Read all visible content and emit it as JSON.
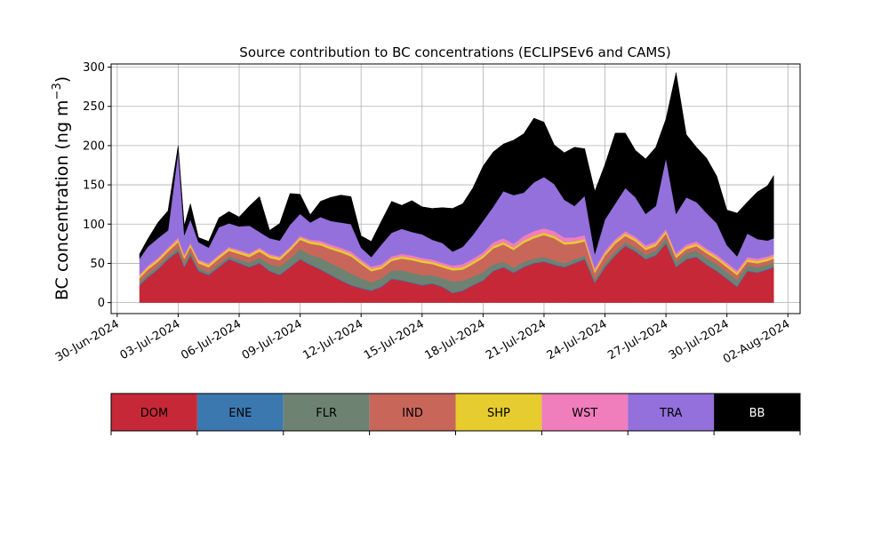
{
  "chart_data": {
    "type": "area",
    "stacked": true,
    "title": "Source contribution to BC concentrations (ECLIPSEv6 and CAMS)",
    "ylabel_main": "BC concentration (ng m",
    "ylabel_sup": "−3",
    "ylabel_close": ")",
    "xlabel": "",
    "ylim": [
      -14,
      304
    ],
    "yticks": [
      0,
      50,
      100,
      150,
      200,
      250,
      300
    ],
    "xlim_days": [
      -0.3,
      33.6
    ],
    "grid": true,
    "x_ticks": [
      {
        "day": 0,
        "label": "30-Jun-2024"
      },
      {
        "day": 3,
        "label": "03-Jul-2024"
      },
      {
        "day": 6,
        "label": "06-Jul-2024"
      },
      {
        "day": 9,
        "label": "09-Jul-2024"
      },
      {
        "day": 12,
        "label": "12-Jul-2024"
      },
      {
        "day": 15,
        "label": "15-Jul-2024"
      },
      {
        "day": 18,
        "label": "18-Jul-2024"
      },
      {
        "day": 21,
        "label": "21-Jul-2024"
      },
      {
        "day": 24,
        "label": "24-Jul-2024"
      },
      {
        "day": 27,
        "label": "27-Jul-2024"
      },
      {
        "day": 30,
        "label": "30-Jul-2024"
      },
      {
        "day": 33,
        "label": "02-Aug-2024"
      }
    ],
    "x_days": [
      1.1,
      1.5,
      2.0,
      2.5,
      3.0,
      3.3,
      3.6,
      4.0,
      4.5,
      5.0,
      5.5,
      6.0,
      6.5,
      7.0,
      7.5,
      8.0,
      8.5,
      9.0,
      9.5,
      10.0,
      10.5,
      11.0,
      11.5,
      12.0,
      12.5,
      13.0,
      13.5,
      14.0,
      14.5,
      15.0,
      15.5,
      16.0,
      16.5,
      17.0,
      17.5,
      18.0,
      18.5,
      19.0,
      19.5,
      20.0,
      20.5,
      21.0,
      21.5,
      22.0,
      22.5,
      23.0,
      23.5,
      24.0,
      24.5,
      25.0,
      25.5,
      26.0,
      26.5,
      27.0,
      27.5,
      28.0,
      28.5,
      29.0,
      29.5,
      30.0,
      30.5,
      31.0,
      31.5,
      32.0,
      32.3
    ],
    "series": [
      {
        "name": "DOM",
        "color": "#c62837",
        "text_color": "#000000",
        "values": [
          22,
          32,
          42,
          55,
          65,
          45,
          60,
          40,
          35,
          45,
          55,
          50,
          45,
          50,
          40,
          35,
          45,
          55,
          48,
          42,
          35,
          28,
          22,
          18,
          15,
          20,
          30,
          28,
          25,
          22,
          24,
          20,
          12,
          15,
          22,
          28,
          40,
          45,
          38,
          45,
          50,
          52,
          48,
          45,
          50,
          55,
          25,
          45,
          60,
          72,
          65,
          55,
          60,
          75,
          45,
          55,
          58,
          48,
          40,
          30,
          20,
          40,
          38,
          42,
          45
        ]
      },
      {
        "name": "ENE",
        "color": "#3b78b0",
        "text_color": "#000000",
        "values": [
          1,
          1,
          1,
          1,
          1,
          1,
          1,
          1,
          1,
          1,
          1,
          1,
          1,
          1,
          1,
          1,
          1,
          1,
          1,
          1,
          1,
          1,
          1,
          1,
          1,
          1,
          1,
          1,
          1,
          1,
          1,
          1,
          1,
          1,
          1,
          1,
          1,
          1,
          1,
          1,
          1,
          1,
          1,
          1,
          1,
          1,
          1,
          1,
          1,
          1,
          1,
          1,
          1,
          1,
          1,
          1,
          1,
          1,
          1,
          1,
          1,
          1,
          1,
          1,
          1
        ]
      },
      {
        "name": "FLR",
        "color": "#6e8271",
        "text_color": "#000000",
        "values": [
          3,
          3,
          3,
          3,
          4,
          4,
          4,
          3,
          3,
          3,
          3,
          4,
          5,
          6,
          8,
          10,
          10,
          12,
          12,
          14,
          14,
          15,
          14,
          12,
          10,
          10,
          10,
          12,
          12,
          12,
          10,
          10,
          14,
          12,
          10,
          10,
          8,
          6,
          6,
          6,
          5,
          5,
          5,
          4,
          4,
          4,
          4,
          4,
          4,
          4,
          4,
          5,
          5,
          6,
          6,
          7,
          7,
          8,
          8,
          8,
          8,
          6,
          6,
          5,
          5
        ]
      },
      {
        "name": "IND",
        "color": "#c8665a",
        "text_color": "#000000",
        "values": [
          5,
          6,
          6,
          6,
          7,
          6,
          6,
          6,
          6,
          7,
          7,
          7,
          7,
          8,
          8,
          8,
          10,
          12,
          14,
          16,
          18,
          20,
          22,
          18,
          14,
          12,
          12,
          15,
          16,
          16,
          14,
          14,
          14,
          14,
          16,
          18,
          20,
          22,
          22,
          24,
          26,
          28,
          28,
          24,
          20,
          18,
          8,
          10,
          10,
          8,
          8,
          6,
          6,
          6,
          5,
          5,
          6,
          6,
          6,
          6,
          6,
          5,
          5,
          5,
          5
        ]
      },
      {
        "name": "SHP",
        "color": "#e6cc2e",
        "text_color": "#000000",
        "values": [
          3,
          3,
          3,
          3,
          3,
          3,
          3,
          3,
          3,
          3,
          3,
          3,
          3,
          3,
          3,
          3,
          3,
          3,
          3,
          3,
          3,
          3,
          3,
          3,
          3,
          3,
          3,
          3,
          3,
          3,
          3,
          3,
          3,
          3,
          3,
          3,
          3,
          3,
          3,
          3,
          3,
          3,
          3,
          3,
          3,
          3,
          3,
          3,
          3,
          3,
          3,
          3,
          3,
          3,
          3,
          3,
          3,
          3,
          3,
          3,
          3,
          3,
          3,
          3,
          3
        ]
      },
      {
        "name": "WST",
        "color": "#f07dbc",
        "text_color": "#000000",
        "values": [
          2,
          2,
          2,
          2,
          3,
          2,
          2,
          2,
          2,
          2,
          2,
          2,
          2,
          2,
          2,
          2,
          2,
          2,
          2,
          3,
          3,
          3,
          3,
          3,
          3,
          3,
          3,
          3,
          3,
          3,
          3,
          3,
          3,
          4,
          4,
          4,
          5,
          5,
          5,
          6,
          6,
          6,
          6,
          6,
          5,
          5,
          3,
          3,
          3,
          3,
          3,
          3,
          3,
          3,
          3,
          3,
          3,
          3,
          3,
          3,
          3,
          3,
          3,
          3,
          3
        ]
      },
      {
        "name": "TRA",
        "color": "#9370db",
        "text_color": "#000000",
        "values": [
          20,
          24,
          25,
          22,
          110,
          25,
          30,
          22,
          20,
          35,
          30,
          30,
          35,
          20,
          20,
          20,
          28,
          28,
          22,
          30,
          30,
          32,
          35,
          15,
          12,
          25,
          30,
          32,
          30,
          30,
          25,
          25,
          18,
          22,
          30,
          40,
          45,
          60,
          62,
          55,
          62,
          65,
          60,
          48,
          40,
          50,
          18,
          40,
          45,
          55,
          50,
          40,
          45,
          90,
          50,
          60,
          50,
          45,
          40,
          22,
          18,
          30,
          25,
          20,
          20
        ]
      },
      {
        "name": "BB",
        "color": "#000000",
        "text_color": "#ffffff",
        "values": [
          6,
          10,
          20,
          25,
          7,
          12,
          20,
          6,
          8,
          12,
          15,
          12,
          25,
          45,
          10,
          22,
          40,
          25,
          10,
          20,
          30,
          35,
          35,
          15,
          20,
          30,
          40,
          30,
          40,
          35,
          40,
          45,
          55,
          55,
          60,
          70,
          70,
          60,
          70,
          75,
          82,
          70,
          50,
          60,
          75,
          60,
          80,
          70,
          90,
          70,
          60,
          70,
          75,
          50,
          180,
          80,
          70,
          70,
          60,
          45,
          55,
          40,
          60,
          70,
          80
        ]
      }
    ]
  }
}
